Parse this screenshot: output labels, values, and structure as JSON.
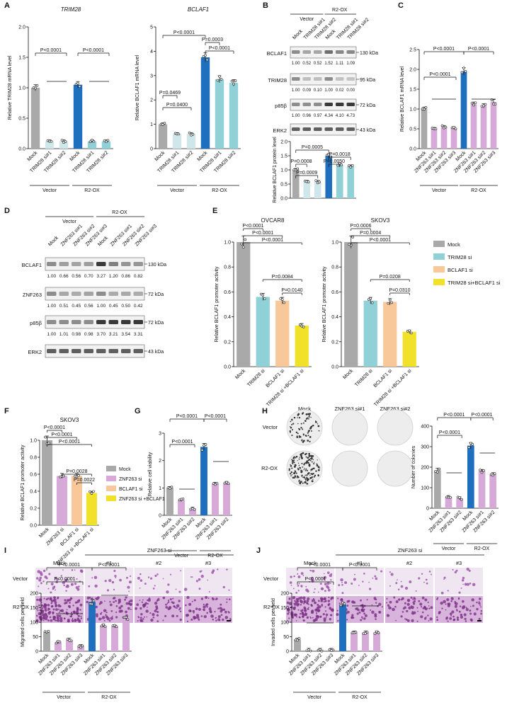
{
  "panel_letters": [
    "A",
    "B",
    "C",
    "D",
    "E",
    "F",
    "G",
    "H",
    "I",
    "J"
  ],
  "colors": {
    "mock": "#a9a9a9",
    "r2": "#1f6fbf",
    "trim": "#8fd1d6",
    "light": "#cfe6ea",
    "znf": "#d6a9d9",
    "bcl": "#f8c89b",
    "combo": "#f2e12a",
    "band": "#3a3a3a"
  },
  "groups": {
    "vector": "Vector",
    "r2ox": "R2-OX"
  },
  "panelA": [
    {
      "title": "TRIM28",
      "ylabel": "Relative TRIM28 mRNA level",
      "yticks": [
        "0.0",
        "0.5",
        "1.0",
        "1.5",
        "2.0"
      ],
      "ymax": 2.0,
      "categories": [
        "Mock",
        "TRIM28 si#1",
        "TRIM28 si#2",
        "Mock",
        "TRIM28 si#1",
        "TRIM28 si#2"
      ],
      "values": [
        1.0,
        0.12,
        0.12,
        1.05,
        0.12,
        0.12
      ],
      "colors": [
        "mock",
        "light",
        "light",
        "r2",
        "trim",
        "trim"
      ],
      "annotations": [
        "P<0.0001",
        "P<0.0001"
      ]
    },
    {
      "title": "BCLAF1",
      "ylabel": "Relative BCLAF1 mRNA level",
      "yticks": [
        "0",
        "1",
        "2",
        "3",
        "4",
        "5"
      ],
      "ymax": 5,
      "categories": [
        "Mock",
        "TRIM28 si#1",
        "TRIM28 si#2",
        "Mock",
        "TRIM28 si#1",
        "TRIM28 si#2"
      ],
      "values": [
        1.0,
        0.6,
        0.6,
        3.75,
        2.85,
        2.7
      ],
      "colors": [
        "mock",
        "light",
        "light",
        "r2",
        "trim",
        "trim"
      ],
      "annotations": [
        "P<0.0001",
        "P=0.0003",
        "P<0.0001",
        "P=0.0469",
        "P=0.0400"
      ]
    }
  ],
  "panelB": {
    "lanes": [
      "Mock",
      "TRIM28 si#1",
      "TRIM28 si#2",
      "Mock",
      "TRIM28 si#1",
      "TRIM28 si#2"
    ],
    "blots": [
      {
        "name": "BCLAF1",
        "kda": "130 kDa",
        "values": [
          "1.00",
          "0.52",
          "0.52",
          "1.52",
          "1.11",
          "1.09"
        ]
      },
      {
        "name": "TRIM28",
        "kda": "95 kDa",
        "values": [
          "1.00",
          "0.09",
          "0.10",
          "1.00",
          "0.02",
          "0.00"
        ]
      },
      {
        "name": "p85β",
        "kda": "72 kDa",
        "values": [
          "1.00",
          "0.96",
          "0.97",
          "4.34",
          "4.10",
          "4.73"
        ]
      },
      {
        "name": "ERK2",
        "kda": "43 kDa",
        "values": []
      }
    ],
    "chart": {
      "ylabel": "Relative BCLAF1 protein level",
      "yticks": [
        "0.0",
        "0.5",
        "1.0",
        "1.5",
        "2.0"
      ],
      "ymax": 2.0,
      "values": [
        1.0,
        0.58,
        0.58,
        1.5,
        1.18,
        1.12
      ],
      "colors": [
        "mock",
        "light",
        "light",
        "r2",
        "trim",
        "trim"
      ],
      "annotations": [
        "P=0.0005",
        "P=0.0018",
        "P=0.0008",
        "P=0.0050",
        "P=0.0009"
      ]
    }
  },
  "panelC": {
    "ylabel": "Relative BCLAF1 mRNA level",
    "yticks": [
      "0.0",
      "0.5",
      "1.0",
      "1.5",
      "2.0",
      "2.5"
    ],
    "ymax": 2.5,
    "categories": [
      "Mock",
      "ZNF263 si#1",
      "ZNF263 si#2",
      "ZNF263 si#3",
      "Mock",
      "ZNF263 si#1",
      "ZNF263 si#2",
      "ZNF263 si#3"
    ],
    "values": [
      1.0,
      0.5,
      0.55,
      0.52,
      1.95,
      1.12,
      1.08,
      1.18
    ],
    "colors": [
      "mock",
      "znf",
      "znf",
      "znf",
      "r2",
      "znf",
      "znf",
      "znf"
    ],
    "annotations": [
      "P<0.0001",
      "P<0.0001",
      "P<0.0001"
    ]
  },
  "panelD": {
    "lanes": [
      "Mock",
      "ZNF263 si#1",
      "ZNF263 si#2",
      "ZNF263 si#3",
      "Mock",
      "ZNF263 si#1",
      "ZNF263 si#2",
      "ZNF263 si#3"
    ],
    "blots": [
      {
        "name": "BCLAF1",
        "kda": "130 kDa",
        "values": [
          "1.00",
          "0.66",
          "0.56",
          "0.70",
          "3.27",
          "1.20",
          "0.86",
          "0.82"
        ]
      },
      {
        "name": "ZNF263",
        "kda": "72 kDa",
        "values": [
          "1.00",
          "0.51",
          "0.45",
          "0.56",
          "1.00",
          "0.45",
          "0.50",
          "0.42"
        ]
      },
      {
        "name": "p85β",
        "kda": "72 kDa",
        "values": [
          "1.00",
          "1.01",
          "0.98",
          "0.98",
          "3.70",
          "3.21",
          "3.54",
          "3.31"
        ]
      },
      {
        "name": "ERK2",
        "kda": "43 kDa",
        "values": []
      }
    ]
  },
  "panelE": {
    "legend": [
      "Mock",
      "TRIM28 si",
      "BCLAF1 si",
      "TRIM28 si+BCLAF1 si"
    ],
    "charts": [
      {
        "title": "OVCAR8",
        "ylabel": "Relative BCLAF1 promoter activity",
        "yticks": [
          "0.0",
          "0.2",
          "0.4",
          "0.6",
          "0.8",
          "1.0"
        ],
        "ymax": 1.0,
        "categories": [
          "Mock",
          "TRIM28 si",
          "BCLAF1 si",
          "TRIM28 si +BCLAF1 si"
        ],
        "values": [
          1.0,
          0.56,
          0.53,
          0.33
        ],
        "annotations": [
          "P<0.0001",
          "P<0.0001",
          "P<0.0001",
          "P=0.0084",
          "P=0.0140"
        ]
      },
      {
        "title": "SKOV3",
        "ylabel": "Relative BCLAF1 promoter activity",
        "yticks": [
          "0.0",
          "0.2",
          "0.4",
          "0.6",
          "0.8",
          "1.0"
        ],
        "ymax": 1.0,
        "categories": [
          "Mock",
          "TRIM28 si",
          "BCLAF1 si",
          "TRIM28 si +BCLAF1 si"
        ],
        "values": [
          1.0,
          0.53,
          0.52,
          0.28
        ],
        "annotations": [
          "P=0.0006",
          "P=0.0004",
          "P<0.0001",
          "P=0.0208",
          "P=0.0310"
        ]
      }
    ]
  },
  "panelF": {
    "title": "SKOV3",
    "ylabel": "Relative BCLAF1 promoter activity",
    "yticks": [
      "0.0",
      "0.2",
      "0.4",
      "0.6",
      "0.8",
      "1.0"
    ],
    "ymax": 1.0,
    "categories": [
      "Mock",
      "ZNF263 si",
      "BCLAF1 si",
      "ZNF263 si +BCLAF1 si"
    ],
    "values": [
      1.0,
      0.58,
      0.58,
      0.38
    ],
    "legend": [
      "Mock",
      "ZNF263 si",
      "BCLAF1 si",
      "ZNF263 si +BCLAF1 si"
    ],
    "annotations": [
      "P<0.0001",
      "P<0.0001",
      "P<0.0001",
      "P=0.0028",
      "P=0.0022"
    ]
  },
  "panelG": {
    "ylabel": "Relative cell viability",
    "yticks": [
      "0",
      "1",
      "2",
      "3"
    ],
    "ymax": 3,
    "categories": [
      "Mock",
      "ZNF263 si#1",
      "ZNF263 si#2",
      "Mock",
      "ZNF263 si#1",
      "ZNF263 si#2"
    ],
    "values": [
      1.0,
      0.55,
      0.25,
      2.5,
      1.15,
      1.18
    ],
    "colors": [
      "mock",
      "znf",
      "znf",
      "r2",
      "znf",
      "znf"
    ],
    "annotations": [
      "P<0.0001",
      "P<0.0001",
      "P<0.0001"
    ]
  },
  "panelH": {
    "cols": [
      "Mock",
      "ZNF263 si#1",
      "ZNF263 si#2"
    ],
    "rows": [
      "Vector",
      "R2-OX"
    ],
    "chart": {
      "ylabel": "Number of colonies",
      "yticks": [
        "0",
        "100",
        "200",
        "300",
        "400"
      ],
      "ymax": 400,
      "categories": [
        "Mock",
        "ZNF263 si#1",
        "ZNF263 si#2",
        "Mock",
        "ZNF263 si#1",
        "ZNF263 si#2"
      ],
      "values": [
        185,
        55,
        48,
        305,
        180,
        165
      ],
      "colors": [
        "mock",
        "znf",
        "znf",
        "r2",
        "znf",
        "znf"
      ],
      "annotations": [
        "P<0.0001",
        "P<0.0001",
        "P<0.0001"
      ]
    }
  },
  "panelI": {
    "header": "ZNF263 si",
    "cols": [
      "Mock",
      "#1",
      "#2",
      "#3"
    ],
    "rows": [
      "Vector",
      "R2-OX"
    ],
    "chart": {
      "ylabel": "Migrated cells per field",
      "yticks": [
        "0",
        "50",
        "100",
        "150",
        "200"
      ],
      "ymax": 200,
      "categories": [
        "Mock",
        "ZNF263 si#1",
        "ZNF263 si#2",
        "ZNF263 si#3",
        "Mock",
        "ZNF263 si#1",
        "ZNF263 si#2",
        "ZNF263 si#3"
      ],
      "values": [
        65,
        30,
        40,
        18,
        170,
        88,
        85,
        112
      ],
      "colors": [
        "mock",
        "znf",
        "znf",
        "znf",
        "r2",
        "znf",
        "znf",
        "znf"
      ],
      "annotations": [
        "P<0.0001",
        "P<0.0001",
        "P<0.0001"
      ]
    }
  },
  "panelJ": {
    "header": "ZNF263 si",
    "cols": [
      "Mock",
      "#1",
      "#2",
      "#3"
    ],
    "rows": [
      "Vector",
      "R2-OX"
    ],
    "chart": {
      "ylabel": "Invaded cells per field",
      "yticks": [
        "0",
        "50",
        "100",
        "150",
        "200"
      ],
      "ymax": 200,
      "categories": [
        "Mock",
        "ZNF263 si#1",
        "ZNF263 si#2",
        "ZNF263 si#3",
        "Mock",
        "ZNF263 si#1",
        "ZNF263 si#2",
        "ZNF263 si#3"
      ],
      "values": [
        40,
        5,
        5,
        5,
        160,
        65,
        65,
        65
      ],
      "colors": [
        "mock",
        "znf",
        "znf",
        "znf",
        "r2",
        "znf",
        "znf",
        "znf"
      ],
      "annotations": [
        "P<0.0001",
        "P<0.0001",
        "P<0.0001"
      ]
    }
  }
}
